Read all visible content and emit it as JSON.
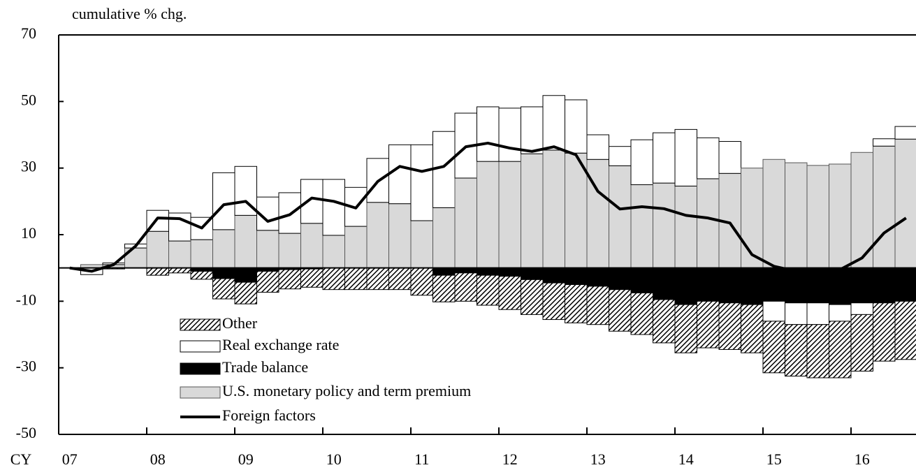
{
  "chart_data": {
    "type": "bar",
    "stacked": true,
    "ylabel": "cumulative % chg.",
    "xlabel": "CY",
    "categories": [
      "07",
      null,
      null,
      null,
      "08",
      null,
      null,
      null,
      "09",
      null,
      null,
      null,
      "10",
      null,
      null,
      null,
      "11",
      null,
      null,
      null,
      "12",
      null,
      null,
      null,
      "13",
      null,
      null,
      null,
      "14",
      null,
      null,
      null,
      "15",
      null,
      null,
      null,
      "16",
      null,
      null
    ],
    "ylim": [
      -50,
      70
    ],
    "yticks": [
      70,
      50,
      30,
      10,
      -10,
      -30,
      -50
    ],
    "series": [
      {
        "name": "Other",
        "color": "#000000",
        "pattern": "hatch",
        "values": [
          0,
          0,
          -0.3,
          0,
          -2.2,
          -1.5,
          -2.4,
          -6.1,
          -6.5,
          -6.3,
          -5.8,
          -5.5,
          -6.5,
          -6.5,
          -6.5,
          -6.5,
          -8.2,
          -8,
          -8.5,
          -9,
          -10,
          -10.5,
          -11,
          -11.5,
          -11.5,
          -12.5,
          -12.5,
          -13,
          -14.5,
          -14,
          -14,
          -14.5,
          -15.5,
          -15.5,
          -16,
          -17,
          -17,
          -17.5,
          -17.5
        ]
      },
      {
        "name": "Real exchange rate",
        "color": "#ffffff",
        "values": [
          0,
          -2,
          0.5,
          1.2,
          6.3,
          8.4,
          6.7,
          17.1,
          14.7,
          10,
          12.2,
          13.2,
          16.8,
          11.7,
          13.2,
          17.7,
          22.8,
          22.9,
          19.5,
          16.4,
          16,
          14.1,
          16.4,
          16,
          7.4,
          5.8,
          13.5,
          15.1,
          17,
          12.3,
          9.6,
          0,
          -6,
          -6.5,
          -6.5,
          -5,
          -3.5,
          2.2,
          3.8
        ]
      },
      {
        "name": "Trade balance",
        "color": "#000000",
        "values": [
          0,
          0,
          0,
          0,
          0,
          0,
          -1,
          -3.2,
          -4.3,
          -1,
          -0.5,
          -0.3,
          0,
          0,
          0,
          0,
          0,
          -2.2,
          -1.5,
          -2.2,
          -2.5,
          -3.5,
          -4.5,
          -5,
          -5.5,
          -6.5,
          -7.5,
          -9.5,
          -11,
          -10,
          -10.5,
          -11,
          -10,
          -10.5,
          -10.5,
          -11,
          -10.5,
          -10.5,
          -10
        ]
      },
      {
        "name": "U.S. monetary policy and term premium",
        "color": "#d9d9d9",
        "values": [
          0,
          1,
          1,
          6,
          11,
          8.1,
          8.5,
          11.5,
          15.8,
          11.3,
          10.4,
          13.4,
          9.8,
          12.5,
          19.7,
          19.3,
          14.2,
          18.1,
          27,
          32,
          32,
          34.3,
          35.4,
          34.5,
          32.6,
          30.7,
          25,
          25.5,
          24.6,
          26.8,
          28.4,
          30,
          32.6,
          31.6,
          30.8,
          31.2,
          34.7,
          36.6,
          38.7
        ]
      },
      {
        "name": "Foreign factors",
        "color": "#000000",
        "type": "line",
        "values": [
          0,
          -1,
          1,
          6.6,
          15,
          14.8,
          12,
          19,
          20,
          14,
          16,
          21,
          20,
          18,
          26,
          30.5,
          29,
          30.5,
          36.4,
          37.5,
          36,
          35,
          36.4,
          34,
          23,
          17.7,
          18.4,
          17.8,
          15.8,
          15,
          13.5,
          4,
          0.5,
          -1,
          -1,
          -0.5,
          3,
          10.5,
          15
        ]
      }
    ]
  }
}
